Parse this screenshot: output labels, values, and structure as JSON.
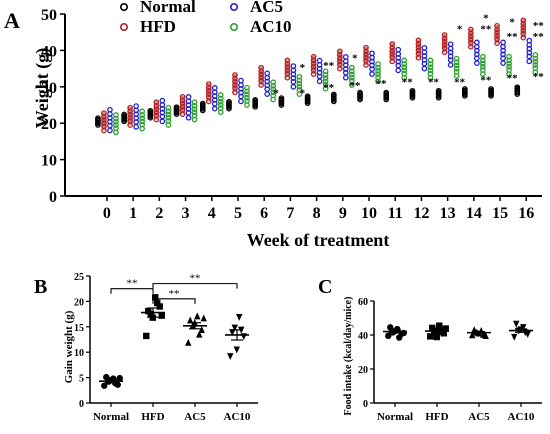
{
  "chart_data": [
    {
      "panel": "A",
      "type": "scatter",
      "title": "",
      "xlabel": "Week of treatment",
      "ylabel": "Weight (g)",
      "x_ticks": [
        0,
        1,
        2,
        3,
        4,
        5,
        6,
        7,
        8,
        9,
        10,
        11,
        12,
        13,
        14,
        15,
        16
      ],
      "y_ticks": [
        0,
        10,
        20,
        30,
        40,
        50
      ],
      "xlim": [
        -1.6,
        16.6
      ],
      "ylim": [
        0,
        50
      ],
      "legend": [
        "Normal",
        "HFD",
        "AC5",
        "AC10"
      ],
      "legend_position": "top-center",
      "series": [
        {
          "name": "Normal",
          "color": "#000000",
          "values": [
            20.5,
            21.5,
            22.5,
            23.5,
            24.5,
            25.0,
            25.5,
            26.0,
            26.5,
            27.0,
            27.5,
            27.5,
            28.0,
            28.0,
            28.5,
            28.5,
            29.0
          ],
          "spread": 1.0
        },
        {
          "name": "HFD",
          "color": "#b22222",
          "values": [
            20.5,
            22.0,
            23.5,
            25.0,
            28.5,
            31.0,
            33.0,
            35.0,
            36.0,
            37.5,
            38.5,
            39.5,
            40.5,
            42.0,
            43.5,
            44.5,
            46.0
          ],
          "spread": 2.5
        },
        {
          "name": "AC5",
          "color": "#1f1fd0",
          "values": [
            21.0,
            22.0,
            23.5,
            24.5,
            27.0,
            29.0,
            31.0,
            33.0,
            34.5,
            35.5,
            36.5,
            37.5,
            38.0,
            39.0,
            39.5,
            39.5,
            40.0
          ],
          "spread": 3.0
        },
        {
          "name": "AC10",
          "color": "#2ca02c",
          "values": [
            20.0,
            21.0,
            22.0,
            23.5,
            25.5,
            27.5,
            29.0,
            30.5,
            32.0,
            33.0,
            34.0,
            35.0,
            35.0,
            35.5,
            36.0,
            36.0,
            36.5
          ],
          "spread": 2.5
        }
      ],
      "annotations": [
        {
          "x": 6,
          "y": 28.5,
          "text": "*"
        },
        {
          "x": 7,
          "y": 28.5,
          "text": "*"
        },
        {
          "x": 7,
          "y": 35.5,
          "text": "*"
        },
        {
          "x": 8,
          "y": 30.0,
          "text": "**"
        },
        {
          "x": 8,
          "y": 36.0,
          "text": "**"
        },
        {
          "x": 9,
          "y": 30.5,
          "text": "**"
        },
        {
          "x": 9,
          "y": 38.0,
          "text": "*"
        },
        {
          "x": 10,
          "y": 31.0,
          "text": "**"
        },
        {
          "x": 11,
          "y": 31.5,
          "text": "**"
        },
        {
          "x": 12,
          "y": 31.5,
          "text": "**"
        },
        {
          "x": 13,
          "y": 31.5,
          "text": "**"
        },
        {
          "x": 13,
          "y": 46.0,
          "text": "*"
        },
        {
          "x": 14,
          "y": 32.0,
          "text": "**"
        },
        {
          "x": 14,
          "y": 46.0,
          "text": "**"
        },
        {
          "x": 14,
          "y": 49.0,
          "text": "*"
        },
        {
          "x": 15,
          "y": 32.5,
          "text": "**"
        },
        {
          "x": 15,
          "y": 44.0,
          "text": "**"
        },
        {
          "x": 15,
          "y": 48.0,
          "text": "*"
        },
        {
          "x": 16,
          "y": 33.0,
          "text": "**"
        },
        {
          "x": 16,
          "y": 44.0,
          "text": "**"
        },
        {
          "x": 16,
          "y": 47.0,
          "text": "**"
        }
      ]
    },
    {
      "panel": "B",
      "type": "scatter",
      "title": "",
      "xlabel": "",
      "ylabel": "Gain weight (g)",
      "categories": [
        "Normal",
        "HFD",
        "AC5",
        "AC10"
      ],
      "y_ticks": [
        0,
        5,
        10,
        15,
        20,
        25
      ],
      "ylim": [
        0,
        25
      ],
      "markers": [
        "circle",
        "square",
        "triangle-up",
        "triangle-down"
      ],
      "points": [
        [
          3.4,
          4.2,
          4.8,
          3.6,
          5.1,
          4.5,
          3.9,
          4.9
        ],
        [
          13.2,
          17.5,
          20.8,
          19.0,
          18.1,
          16.8,
          19.7,
          17.2
        ],
        [
          11.9,
          15.2,
          17.1,
          14.4,
          16.3,
          15.8,
          13.5,
          16.7
        ],
        [
          9.2,
          14.8,
          16.9,
          13.1,
          13.9,
          10.5,
          14.4
        ]
      ],
      "means": [
        4.3,
        17.8,
        15.2,
        13.4
      ],
      "sem": [
        0.3,
        0.9,
        0.6,
        1.0
      ],
      "significance": [
        {
          "from": "Normal",
          "to": "HFD",
          "y": 22.5,
          "text": "**"
        },
        {
          "from": "HFD",
          "to": "AC5",
          "y": 20.5,
          "text": "**"
        },
        {
          "from": "HFD",
          "to": "AC10",
          "y": 23.5,
          "text": "**"
        }
      ]
    },
    {
      "panel": "C",
      "type": "scatter",
      "title": "",
      "xlabel": "",
      "ylabel": "Food intake (kcal/day/mice)",
      "categories": [
        "Normal",
        "HFD",
        "AC5",
        "AC10"
      ],
      "y_ticks": [
        0,
        20,
        40,
        60
      ],
      "ylim": [
        0,
        60
      ],
      "markers": [
        "circle",
        "square",
        "triangle-up",
        "triangle-down"
      ],
      "points": [
        [
          39.5,
          41.5,
          43.5,
          40.8,
          44.5,
          42.2,
          38.5,
          41.2
        ],
        [
          39.2,
          42.5,
          45.5,
          41.0,
          44.2,
          38.8,
          42.0,
          43.8
        ],
        [
          40.0,
          41.5,
          42.5,
          39.5,
          43.0,
          41.0,
          40.2
        ],
        [
          38.8,
          42.5,
          44.5,
          40.5,
          46.5,
          43.2,
          41.5
        ]
      ],
      "means": [
        42.0,
        42.3,
        41.4,
        42.6
      ],
      "sem": [
        0.8,
        0.9,
        0.6,
        1.0
      ]
    }
  ],
  "panel_labels": {
    "a": "A",
    "b": "B",
    "c": "C"
  },
  "colors": {
    "axis": "#000000",
    "normal": "#000000",
    "hfd": "#b22222",
    "ac5": "#1f1fd0",
    "ac10": "#2ca02c"
  }
}
